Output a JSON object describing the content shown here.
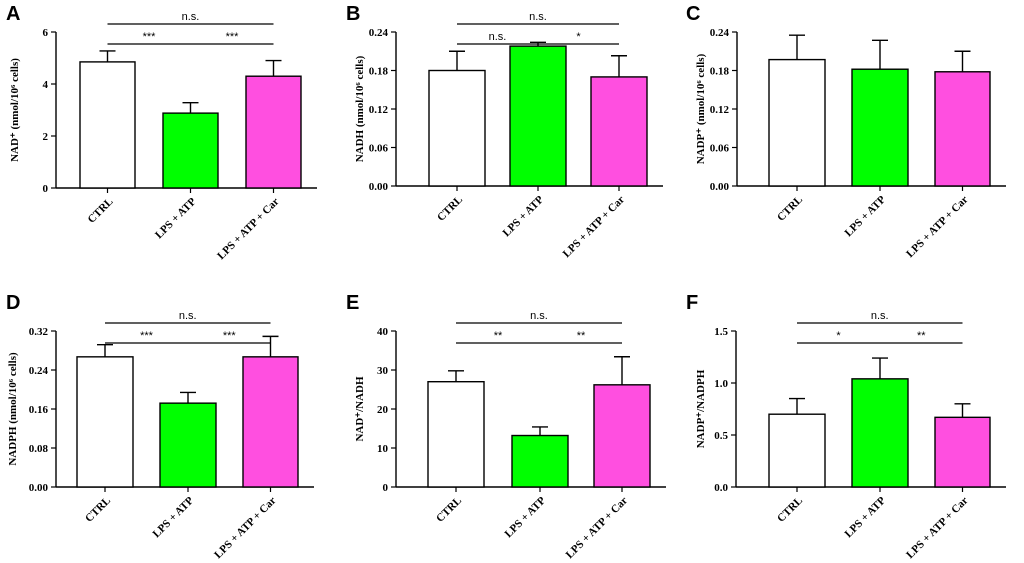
{
  "colors": {
    "CTRL": "#ffffff",
    "LPS + ATP": "#00ff00",
    "LPS + ATP + Car": "#ff4fe0"
  },
  "chart_data": [
    {
      "panel": "A",
      "type": "bar",
      "categories": [
        "CTRL",
        "LPS + ATP",
        "LPS + ATP + Car"
      ],
      "values": [
        4.85,
        2.88,
        4.3
      ],
      "errors": [
        0.42,
        0.4,
        0.6
      ],
      "ylabel": "NAD⁺ (nmol/10⁶ cells)",
      "ylim": [
        0,
        6
      ],
      "yticks": [
        "0",
        "2",
        "4",
        "6"
      ],
      "comparisons": [
        {
          "groups": [
            0,
            1
          ],
          "label": "***",
          "level": 1
        },
        {
          "groups": [
            1,
            2
          ],
          "label": "***",
          "level": 1
        },
        {
          "groups": [
            0,
            2
          ],
          "label": "n.s.",
          "level": 2
        }
      ]
    },
    {
      "panel": "B",
      "type": "bar",
      "categories": [
        "CTRL",
        "LPS + ATP",
        "LPS + ATP + Car"
      ],
      "values": [
        0.18,
        0.218,
        0.17
      ],
      "errors": [
        0.03,
        0.006,
        0.033
      ],
      "ylabel": "NADH (nmol/10⁶ cells)",
      "ylim": [
        0,
        0.24
      ],
      "yticks": [
        "0.00",
        "0.06",
        "0.12",
        "0.18",
        "0.24"
      ],
      "comparisons": [
        {
          "groups": [
            0,
            1
          ],
          "label": "n.s.",
          "level": 1
        },
        {
          "groups": [
            1,
            2
          ],
          "label": "*",
          "level": 1
        },
        {
          "groups": [
            0,
            2
          ],
          "label": "n.s.",
          "level": 2
        }
      ]
    },
    {
      "panel": "C",
      "type": "bar",
      "categories": [
        "CTRL",
        "LPS + ATP",
        "LPS + ATP + Car"
      ],
      "values": [
        0.197,
        0.182,
        0.178
      ],
      "errors": [
        0.038,
        0.045,
        0.032
      ],
      "ylabel": "NADP⁺ (nmol/10⁶ cells)",
      "ylim": [
        0,
        0.24
      ],
      "yticks": [
        "0.00",
        "0.06",
        "0.12",
        "0.18",
        "0.24"
      ],
      "comparisons": []
    },
    {
      "panel": "D",
      "type": "bar",
      "categories": [
        "CTRL",
        "LPS + ATP",
        "LPS + ATP + Car"
      ],
      "values": [
        0.267,
        0.172,
        0.267
      ],
      "errors": [
        0.025,
        0.022,
        0.042
      ],
      "ylabel": "NADPH (nmol/10⁶ cells)",
      "ylim": [
        0,
        0.32
      ],
      "yticks": [
        "0.00",
        "0.08",
        "0.16",
        "0.24",
        "0.32"
      ],
      "comparisons": [
        {
          "groups": [
            0,
            1
          ],
          "label": "***",
          "level": 1
        },
        {
          "groups": [
            1,
            2
          ],
          "label": "***",
          "level": 1
        },
        {
          "groups": [
            0,
            2
          ],
          "label": "n.s.",
          "level": 2
        }
      ]
    },
    {
      "panel": "E",
      "type": "bar",
      "categories": [
        "CTRL",
        "LPS + ATP",
        "LPS + ATP + Car"
      ],
      "values": [
        27,
        13.2,
        26.2
      ],
      "errors": [
        2.8,
        2.2,
        7.2
      ],
      "ylabel": "NAD⁺/NADH",
      "ylim": [
        0,
        40
      ],
      "yticks": [
        "0",
        "10",
        "20",
        "30",
        "40"
      ],
      "comparisons": [
        {
          "groups": [
            0,
            1
          ],
          "label": "**",
          "level": 1
        },
        {
          "groups": [
            1,
            2
          ],
          "label": "**",
          "level": 1
        },
        {
          "groups": [
            0,
            2
          ],
          "label": "n.s.",
          "level": 2
        }
      ]
    },
    {
      "panel": "F",
      "type": "bar",
      "categories": [
        "CTRL",
        "LPS + ATP",
        "LPS + ATP + Car"
      ],
      "values": [
        0.7,
        1.04,
        0.67
      ],
      "errors": [
        0.15,
        0.2,
        0.13
      ],
      "ylabel": "NADP⁺/NADPH",
      "ylim": [
        0,
        1.5
      ],
      "yticks": [
        "0.0",
        "0.5",
        "1.0",
        "1.5"
      ],
      "comparisons": [
        {
          "groups": [
            0,
            1
          ],
          "label": "*",
          "level": 1
        },
        {
          "groups": [
            1,
            2
          ],
          "label": "**",
          "level": 1
        },
        {
          "groups": [
            0,
            2
          ],
          "label": "n.s.",
          "level": 2
        }
      ]
    }
  ]
}
